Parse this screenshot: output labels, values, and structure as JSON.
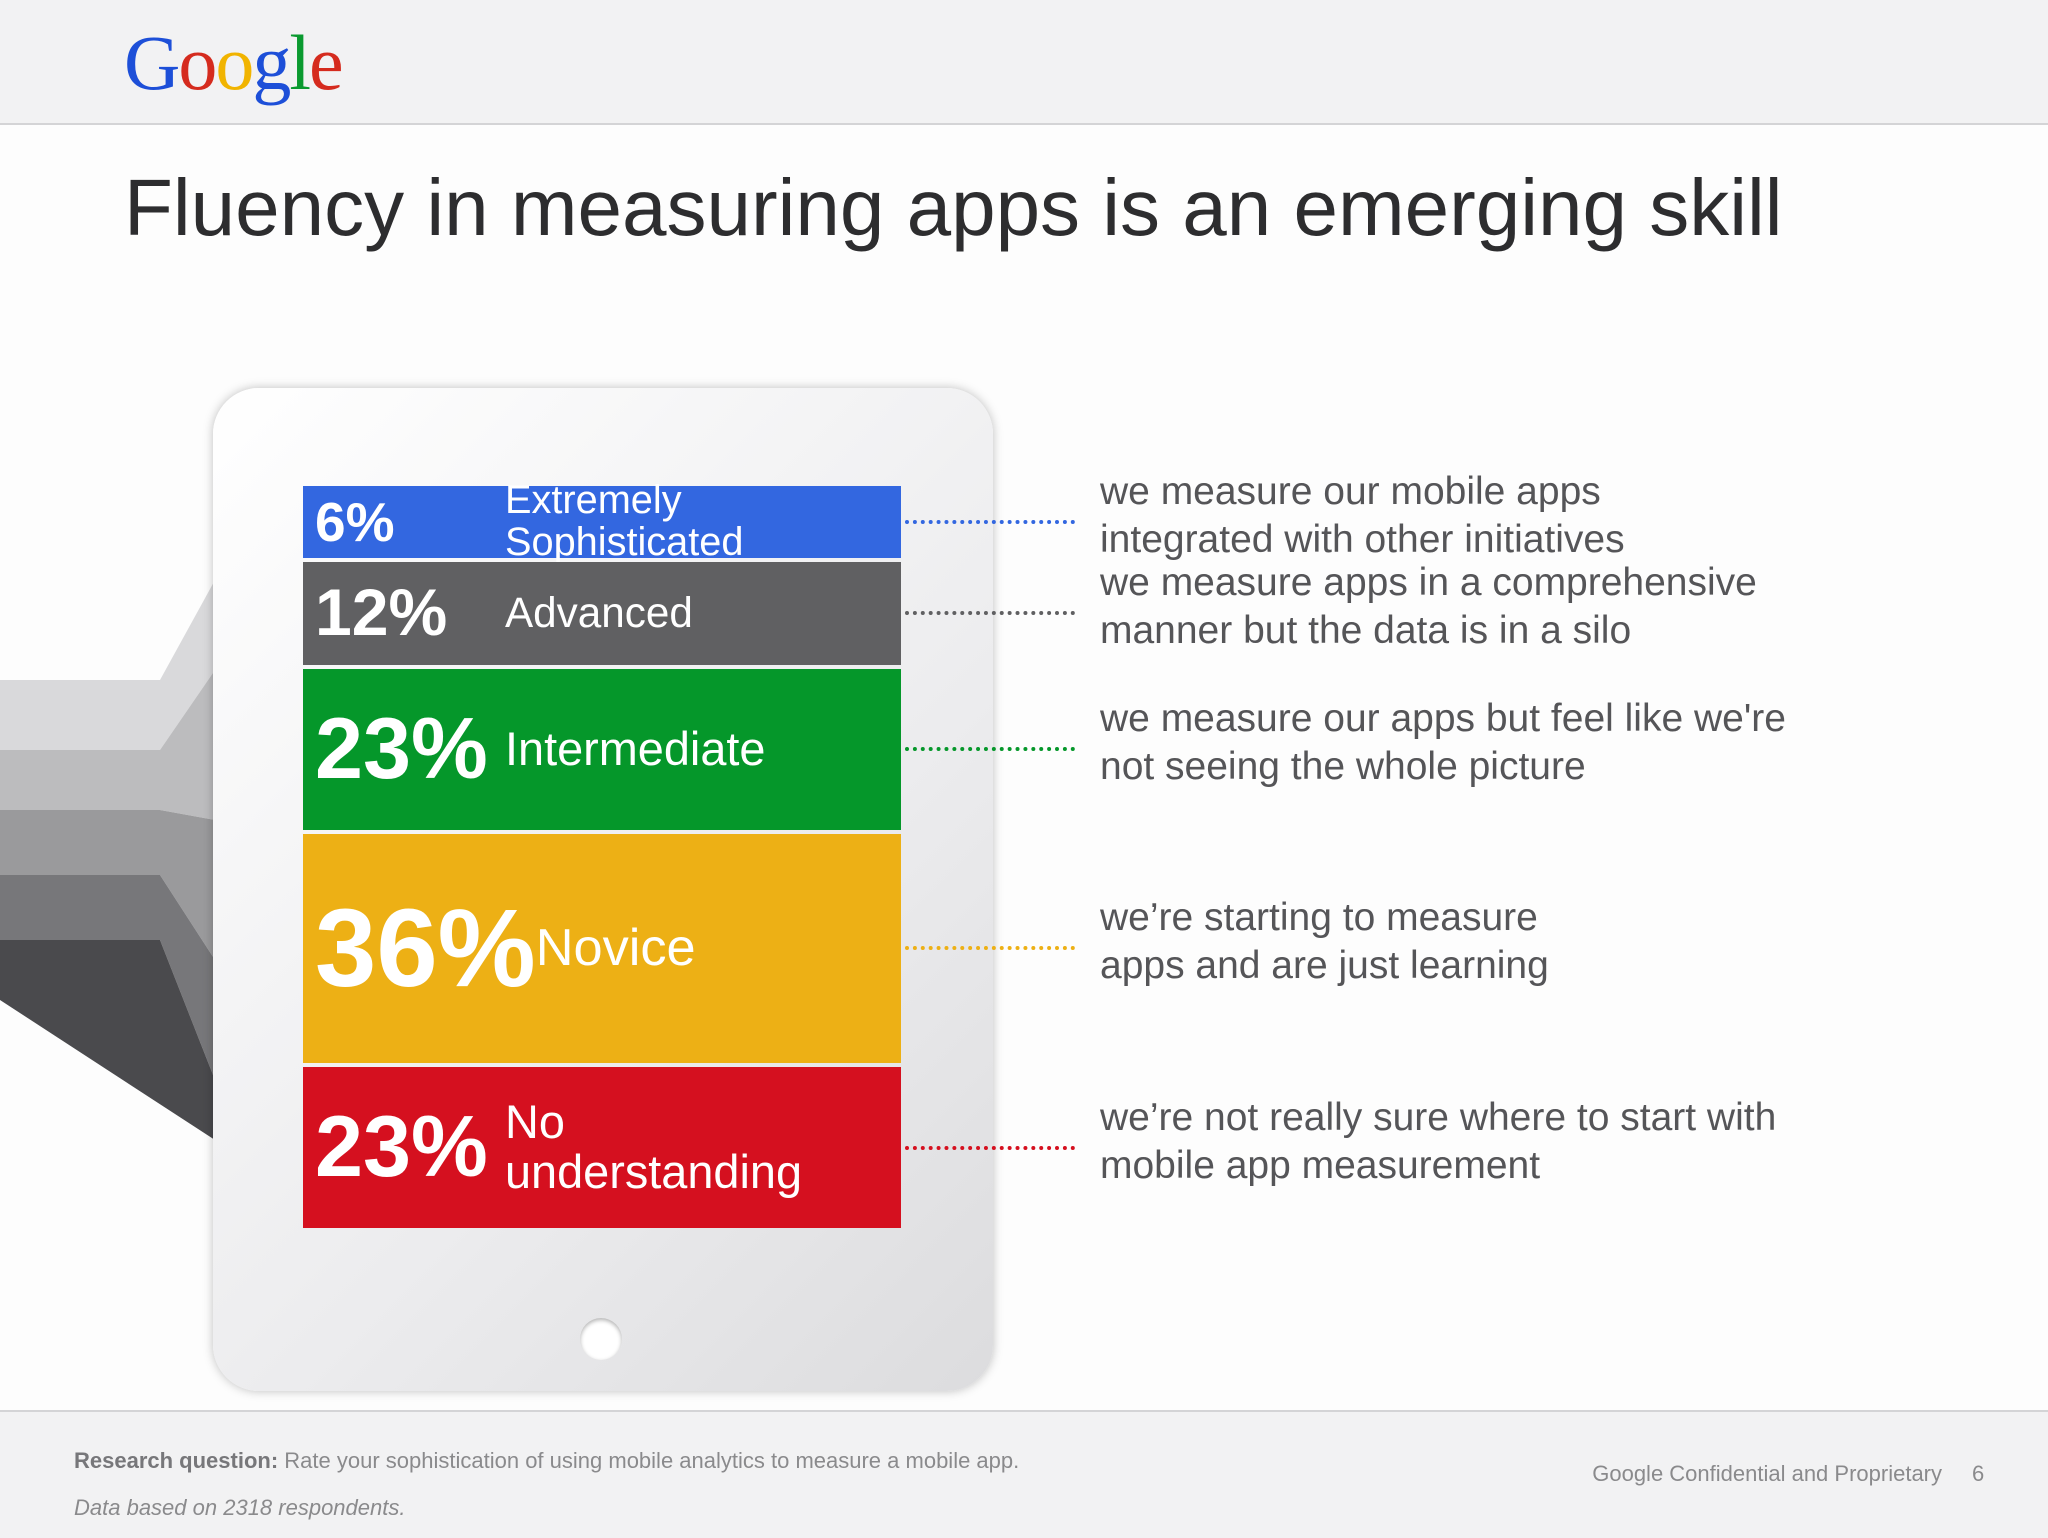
{
  "logo": "Google",
  "title": "Fluency in measuring apps is an emerging skill",
  "chart_data": {
    "type": "stacked-bar",
    "categories": [
      "Extremely Sophisticated",
      "Advanced",
      "Intermediate",
      "Novice",
      "No understanding"
    ],
    "values": [
      6,
      12,
      23,
      36,
      23
    ],
    "value_labels": [
      "6%",
      "12%",
      "23%",
      "36%",
      "23%"
    ],
    "colors": [
      "#3367e0",
      "#606062",
      "#05972a",
      "#edb015",
      "#d5101f"
    ],
    "descriptions": [
      [
        "we measure our mobile apps",
        "integrated with other initiatives"
      ],
      [
        "we measure apps in a comprehensive",
        "manner but the data is in a silo"
      ],
      [
        "we measure our apps but feel like we're",
        "not seeing the whole picture"
      ],
      [
        "we’re starting to measure",
        "apps and are just learning"
      ],
      [
        "we’re not really sure where to start with",
        "mobile app measurement"
      ]
    ]
  },
  "footer": {
    "question_label": "Research question:",
    "question": "Rate your sophistication of using mobile analytics to measure a mobile app.",
    "note": "Data based on 2318 respondents.",
    "confidential": "Google Confidential and Proprietary",
    "page": 6
  }
}
